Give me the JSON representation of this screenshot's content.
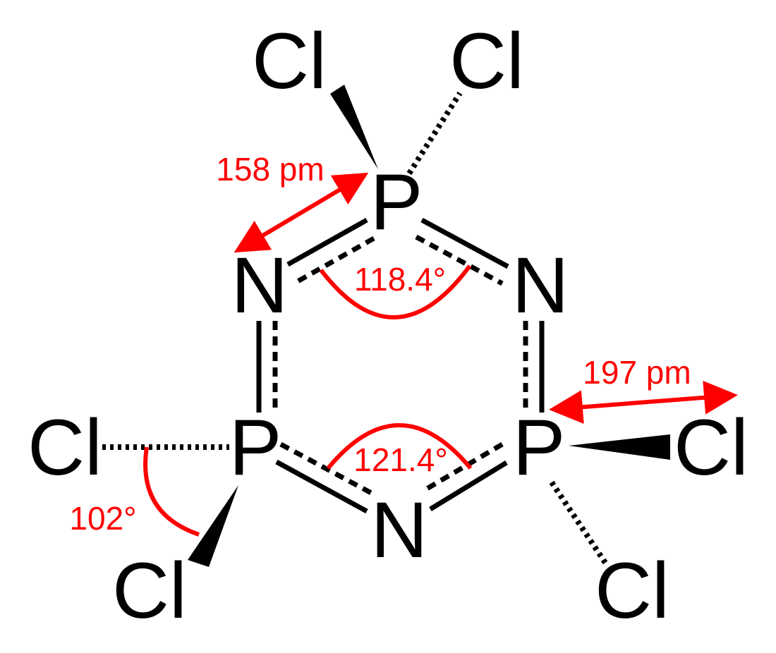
{
  "colors": {
    "atom": "#000000",
    "annotation": "#ff0000",
    "background": "#ffffff"
  },
  "atoms": {
    "p_top": "P",
    "p_left": "P",
    "p_right": "P",
    "n_upper_left": "N",
    "n_upper_right": "N",
    "n_bottom": "N",
    "cl_top_left": "Cl",
    "cl_top_right": "Cl",
    "cl_left": "Cl",
    "cl_bottom_left": "Cl",
    "cl_right": "Cl",
    "cl_bottom_right": "Cl"
  },
  "annotations": {
    "pn_bond_length": "158 pm",
    "pcl_bond_length": "197 pm",
    "npn_angle": "118.4°",
    "pnp_angle": "121.4°",
    "clpcl_angle": "102°"
  }
}
